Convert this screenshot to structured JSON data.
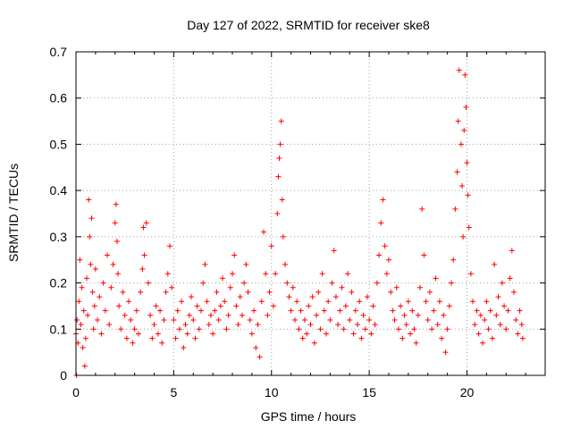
{
  "chart_data": {
    "type": "scatter",
    "title": "Day 127 of 2022, SRMTID for receiver ske8",
    "xlabel": "GPS time / hours",
    "ylabel": "SRMTID / TECUs",
    "xlim": [
      0,
      24
    ],
    "ylim": [
      0,
      0.7
    ],
    "xticks": [
      0,
      5,
      10,
      15,
      20
    ],
    "yticks": [
      0,
      0.1,
      0.2,
      0.3,
      0.4,
      0.5,
      0.6,
      0.7
    ],
    "xtick_labels": [
      "0",
      "5",
      "10",
      "15",
      "20"
    ],
    "ytick_labels": [
      "0",
      "0.1",
      "0.2",
      "0.3",
      "0.4",
      "0.5",
      "0.6",
      "0.7"
    ],
    "grid": true,
    "marker": "plus",
    "color": "#ff0000",
    "series": [
      {
        "name": "SRMTID",
        "points": [
          [
            0.0,
            0.09
          ],
          [
            0.03,
            0.0
          ],
          [
            0.05,
            0.12
          ],
          [
            0.1,
            0.07
          ],
          [
            0.15,
            0.16
          ],
          [
            0.2,
            0.25
          ],
          [
            0.25,
            0.11
          ],
          [
            0.3,
            0.19
          ],
          [
            0.35,
            0.06
          ],
          [
            0.4,
            0.14
          ],
          [
            0.45,
            0.02
          ],
          [
            0.5,
            0.08
          ],
          [
            0.55,
            0.21
          ],
          [
            0.6,
            0.13
          ],
          [
            0.65,
            0.38
          ],
          [
            0.7,
            0.3
          ],
          [
            0.75,
            0.24
          ],
          [
            0.8,
            0.34
          ],
          [
            0.85,
            0.18
          ],
          [
            0.9,
            0.1
          ],
          [
            0.95,
            0.15
          ],
          [
            1.0,
            0.23
          ],
          [
            1.1,
            0.12
          ],
          [
            1.2,
            0.17
          ],
          [
            1.3,
            0.09
          ],
          [
            1.4,
            0.2
          ],
          [
            1.5,
            0.14
          ],
          [
            1.6,
            0.26
          ],
          [
            1.7,
            0.11
          ],
          [
            1.8,
            0.19
          ],
          [
            1.9,
            0.24
          ],
          [
            2.0,
            0.33
          ],
          [
            2.05,
            0.37
          ],
          [
            2.1,
            0.29
          ],
          [
            2.15,
            0.22
          ],
          [
            2.2,
            0.15
          ],
          [
            2.3,
            0.1
          ],
          [
            2.4,
            0.18
          ],
          [
            2.5,
            0.13
          ],
          [
            2.6,
            0.08
          ],
          [
            2.7,
            0.16
          ],
          [
            2.8,
            0.12
          ],
          [
            2.9,
            0.07
          ],
          [
            3.0,
            0.1
          ],
          [
            3.1,
            0.14
          ],
          [
            3.2,
            0.09
          ],
          [
            3.3,
            0.18
          ],
          [
            3.4,
            0.23
          ],
          [
            3.45,
            0.32
          ],
          [
            3.5,
            0.26
          ],
          [
            3.6,
            0.33
          ],
          [
            3.7,
            0.2
          ],
          [
            3.8,
            0.13
          ],
          [
            3.9,
            0.08
          ],
          [
            4.0,
            0.11
          ],
          [
            4.1,
            0.15
          ],
          [
            4.2,
            0.09
          ],
          [
            4.3,
            0.14
          ],
          [
            4.4,
            0.07
          ],
          [
            4.5,
            0.12
          ],
          [
            4.6,
            0.18
          ],
          [
            4.7,
            0.22
          ],
          [
            4.8,
            0.28
          ],
          [
            4.9,
            0.19
          ],
          [
            5.0,
            0.12
          ],
          [
            5.1,
            0.08
          ],
          [
            5.2,
            0.14
          ],
          [
            5.3,
            0.1
          ],
          [
            5.4,
            0.16
          ],
          [
            5.5,
            0.06
          ],
          [
            5.6,
            0.11
          ],
          [
            5.7,
            0.09
          ],
          [
            5.8,
            0.13
          ],
          [
            5.9,
            0.17
          ],
          [
            6.0,
            0.12
          ],
          [
            6.1,
            0.08
          ],
          [
            6.2,
            0.15
          ],
          [
            6.3,
            0.1
          ],
          [
            6.4,
            0.14
          ],
          [
            6.5,
            0.2
          ],
          [
            6.6,
            0.24
          ],
          [
            6.7,
            0.16
          ],
          [
            6.8,
            0.11
          ],
          [
            6.9,
            0.13
          ],
          [
            7.0,
            0.09
          ],
          [
            7.1,
            0.14
          ],
          [
            7.2,
            0.18
          ],
          [
            7.3,
            0.12
          ],
          [
            7.4,
            0.15
          ],
          [
            7.5,
            0.21
          ],
          [
            7.6,
            0.16
          ],
          [
            7.7,
            0.1
          ],
          [
            7.8,
            0.13
          ],
          [
            7.9,
            0.19
          ],
          [
            8.0,
            0.22
          ],
          [
            8.1,
            0.26
          ],
          [
            8.2,
            0.15
          ],
          [
            8.3,
            0.11
          ],
          [
            8.4,
            0.17
          ],
          [
            8.5,
            0.13
          ],
          [
            8.6,
            0.2
          ],
          [
            8.7,
            0.24
          ],
          [
            8.8,
            0.18
          ],
          [
            8.9,
            0.12
          ],
          [
            9.0,
            0.09
          ],
          [
            9.1,
            0.14
          ],
          [
            9.2,
            0.06
          ],
          [
            9.3,
            0.11
          ],
          [
            9.4,
            0.04
          ],
          [
            9.5,
            0.16
          ],
          [
            9.6,
            0.31
          ],
          [
            9.7,
            0.22
          ],
          [
            9.8,
            0.13
          ],
          [
            9.9,
            0.18
          ],
          [
            10.0,
            0.28
          ],
          [
            10.1,
            0.15
          ],
          [
            10.2,
            0.22
          ],
          [
            10.3,
            0.35
          ],
          [
            10.35,
            0.43
          ],
          [
            10.4,
            0.47
          ],
          [
            10.45,
            0.5
          ],
          [
            10.5,
            0.55
          ],
          [
            10.55,
            0.38
          ],
          [
            10.6,
            0.3
          ],
          [
            10.7,
            0.24
          ],
          [
            10.8,
            0.2
          ],
          [
            10.9,
            0.17
          ],
          [
            11.0,
            0.14
          ],
          [
            11.1,
            0.19
          ],
          [
            11.2,
            0.12
          ],
          [
            11.3,
            0.16
          ],
          [
            11.4,
            0.1
          ],
          [
            11.5,
            0.14
          ],
          [
            11.6,
            0.08
          ],
          [
            11.7,
            0.12
          ],
          [
            11.8,
            0.09
          ],
          [
            11.9,
            0.15
          ],
          [
            12.0,
            0.11
          ],
          [
            12.1,
            0.17
          ],
          [
            12.2,
            0.07
          ],
          [
            12.3,
            0.13
          ],
          [
            12.4,
            0.18
          ],
          [
            12.5,
            0.1
          ],
          [
            12.6,
            0.22
          ],
          [
            12.7,
            0.14
          ],
          [
            12.8,
            0.09
          ],
          [
            12.9,
            0.16
          ],
          [
            13.0,
            0.12
          ],
          [
            13.1,
            0.2
          ],
          [
            13.2,
            0.27
          ],
          [
            13.3,
            0.17
          ],
          [
            13.4,
            0.11
          ],
          [
            13.5,
            0.14
          ],
          [
            13.6,
            0.19
          ],
          [
            13.7,
            0.1
          ],
          [
            13.8,
            0.15
          ],
          [
            13.9,
            0.22
          ],
          [
            14.0,
            0.12
          ],
          [
            14.1,
            0.18
          ],
          [
            14.2,
            0.09
          ],
          [
            14.3,
            0.14
          ],
          [
            14.4,
            0.11
          ],
          [
            14.5,
            0.16
          ],
          [
            14.6,
            0.08
          ],
          [
            14.7,
            0.13
          ],
          [
            14.8,
            0.1
          ],
          [
            14.9,
            0.17
          ],
          [
            15.0,
            0.12
          ],
          [
            15.1,
            0.09
          ],
          [
            15.2,
            0.15
          ],
          [
            15.3,
            0.11
          ],
          [
            15.4,
            0.2
          ],
          [
            15.5,
            0.26
          ],
          [
            15.6,
            0.33
          ],
          [
            15.7,
            0.38
          ],
          [
            15.8,
            0.28
          ],
          [
            15.9,
            0.22
          ],
          [
            16.0,
            0.25
          ],
          [
            16.1,
            0.18
          ],
          [
            16.2,
            0.14
          ],
          [
            16.3,
            0.12
          ],
          [
            16.4,
            0.19
          ],
          [
            16.5,
            0.1
          ],
          [
            16.6,
            0.15
          ],
          [
            16.7,
            0.08
          ],
          [
            16.8,
            0.13
          ],
          [
            16.9,
            0.11
          ],
          [
            17.0,
            0.16
          ],
          [
            17.1,
            0.09
          ],
          [
            17.2,
            0.14
          ],
          [
            17.3,
            0.1
          ],
          [
            17.4,
            0.07
          ],
          [
            17.5,
            0.13
          ],
          [
            17.6,
            0.19
          ],
          [
            17.7,
            0.36
          ],
          [
            17.8,
            0.26
          ],
          [
            17.9,
            0.16
          ],
          [
            18.0,
            0.12
          ],
          [
            18.1,
            0.18
          ],
          [
            18.2,
            0.1
          ],
          [
            18.3,
            0.14
          ],
          [
            18.4,
            0.21
          ],
          [
            18.5,
            0.11
          ],
          [
            18.6,
            0.16
          ],
          [
            18.7,
            0.08
          ],
          [
            18.8,
            0.13
          ],
          [
            18.9,
            0.05
          ],
          [
            19.0,
            0.1
          ],
          [
            19.1,
            0.15
          ],
          [
            19.2,
            0.2
          ],
          [
            19.3,
            0.25
          ],
          [
            19.4,
            0.36
          ],
          [
            19.5,
            0.44
          ],
          [
            19.55,
            0.55
          ],
          [
            19.6,
            0.66
          ],
          [
            19.7,
            0.5
          ],
          [
            19.75,
            0.41
          ],
          [
            19.8,
            0.3
          ],
          [
            19.85,
            0.53
          ],
          [
            19.9,
            0.65
          ],
          [
            19.95,
            0.58
          ],
          [
            20.0,
            0.46
          ],
          [
            20.05,
            0.39
          ],
          [
            20.1,
            0.32
          ],
          [
            20.2,
            0.22
          ],
          [
            20.3,
            0.16
          ],
          [
            20.4,
            0.11
          ],
          [
            20.5,
            0.14
          ],
          [
            20.6,
            0.09
          ],
          [
            20.7,
            0.13
          ],
          [
            20.8,
            0.07
          ],
          [
            20.9,
            0.12
          ],
          [
            21.0,
            0.16
          ],
          [
            21.1,
            0.1
          ],
          [
            21.2,
            0.14
          ],
          [
            21.3,
            0.08
          ],
          [
            21.4,
            0.24
          ],
          [
            21.5,
            0.13
          ],
          [
            21.6,
            0.17
          ],
          [
            21.7,
            0.11
          ],
          [
            21.8,
            0.2
          ],
          [
            21.9,
            0.15
          ],
          [
            22.0,
            0.1
          ],
          [
            22.1,
            0.14
          ],
          [
            22.2,
            0.21
          ],
          [
            22.3,
            0.27
          ],
          [
            22.4,
            0.18
          ],
          [
            22.5,
            0.12
          ],
          [
            22.6,
            0.09
          ],
          [
            22.7,
            0.14
          ],
          [
            22.8,
            0.11
          ],
          [
            22.85,
            0.08
          ]
        ]
      }
    ]
  }
}
